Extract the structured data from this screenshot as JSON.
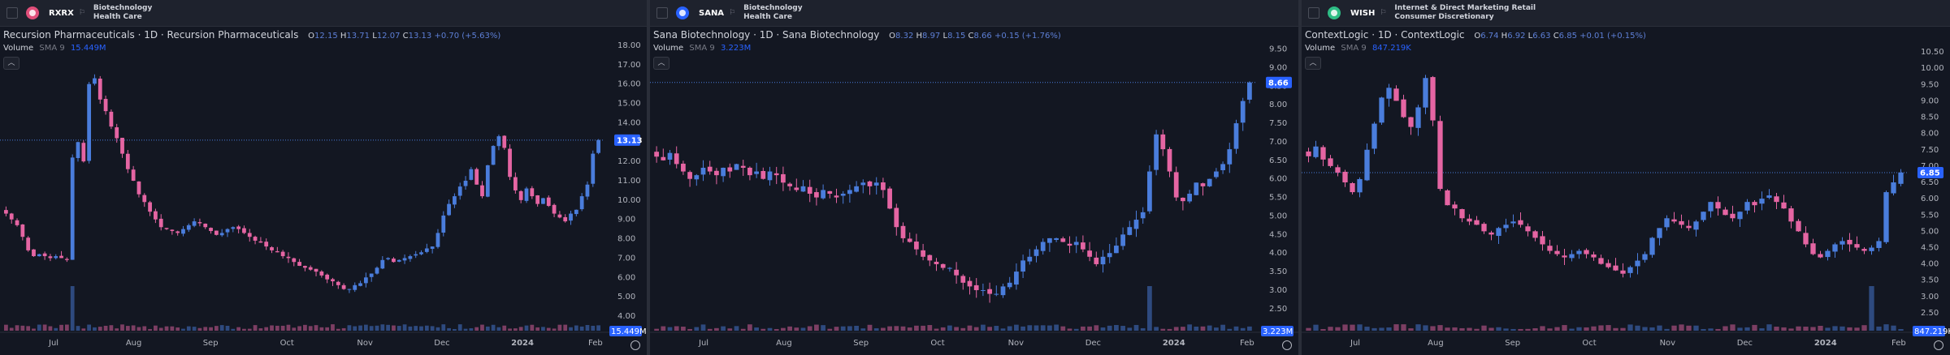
{
  "colors": {
    "up": "#4a7ddc",
    "down": "#e565a3",
    "bg": "#131722",
    "label": "#2962ff"
  },
  "panels": [
    {
      "ticker": "RXRX",
      "sector1": "Biotechnology",
      "sector2": "Health Care",
      "logo_color": "#e04e7a",
      "title": "Recursion Pharmaceuticals · 1D · Recursion Pharmaceuticals",
      "ohlc": {
        "o": "12.15",
        "h": "13.71",
        "l": "12.07",
        "c": "13.13",
        "chg": "+0.70 (+5.63%)"
      },
      "volume_label": "Volume",
      "sma_label": "SMA 9",
      "volume_value": "15.449M",
      "y_ticks": [
        "18.00",
        "17.00",
        "16.00",
        "15.00",
        "14.00",
        "13.00",
        "12.00",
        "11.00",
        "10.00",
        "9.00",
        "8.00",
        "7.00",
        "6.00",
        "5.00",
        "4.00"
      ],
      "x_ticks": [
        "Jul",
        "Aug",
        "Sep",
        "Oct",
        "Nov",
        "Dec",
        "2024",
        "Feb"
      ],
      "price_label": "13.13",
      "vol_label": "15.449M",
      "chart_data": {
        "type": "candlestick",
        "ymin": 4,
        "ymax": 18,
        "closes": [
          9.3,
          9.0,
          8.7,
          8.1,
          7.4,
          7.1,
          7.2,
          7.1,
          7.0,
          7.1,
          7.0,
          6.9,
          12.2,
          13.0,
          12.0,
          16.0,
          16.3,
          15.2,
          14.6,
          13.8,
          13.2,
          12.4,
          11.6,
          11.0,
          10.3,
          9.9,
          9.4,
          9.0,
          8.6,
          8.5,
          8.4,
          8.3,
          8.5,
          8.7,
          8.9,
          8.8,
          8.6,
          8.4,
          8.2,
          8.3,
          8.5,
          8.6,
          8.5,
          8.3,
          8.1,
          7.9,
          7.8,
          7.6,
          7.4,
          7.3,
          7.1,
          7.0,
          6.8,
          6.6,
          6.5,
          6.4,
          6.3,
          6.1,
          5.9,
          5.8,
          5.6,
          5.4,
          5.4,
          5.6,
          5.7,
          6.0,
          6.2,
          6.5,
          6.9,
          7.0,
          6.8,
          6.9,
          7.0,
          7.1,
          7.2,
          7.3,
          7.5,
          7.6,
          8.3,
          9.2,
          9.8,
          10.2,
          10.7,
          11.0,
          11.6,
          10.8,
          10.2,
          11.8,
          12.8,
          13.3,
          12.7,
          11.2,
          10.5,
          10.0,
          10.6,
          10.2,
          9.8,
          10.1,
          9.7,
          9.3,
          9.1,
          8.9,
          9.3,
          9.5,
          10.2,
          10.8,
          12.4,
          13.1
        ],
        "volume_spikes": [
          {
            "index": 12,
            "value": 15.4
          }
        ]
      }
    },
    {
      "ticker": "SANA",
      "sector1": "Biotechnology",
      "sector2": "Health Care",
      "logo_color": "#2962ff",
      "title": "Sana Biotechnology · 1D · Sana Biotechnology",
      "ohlc": {
        "o": "8.32",
        "h": "8.97",
        "l": "8.15",
        "c": "8.66",
        "chg": "+0.15 (+1.76%)"
      },
      "volume_label": "Volume",
      "sma_label": "SMA 9",
      "volume_value": "3.223M",
      "y_ticks": [
        "9.50",
        "9.00",
        "8.50",
        "8.00",
        "7.50",
        "7.00",
        "6.50",
        "6.00",
        "5.50",
        "5.00",
        "4.50",
        "4.00",
        "3.50",
        "3.00",
        "2.50"
      ],
      "x_ticks": [
        "Jul",
        "Aug",
        "Sep",
        "Oct",
        "Nov",
        "Dec",
        "2024",
        "Feb"
      ],
      "price_label": "8.66",
      "vol_label": "3.223M",
      "chart_data": {
        "type": "candlestick",
        "ymin": 2.3,
        "ymax": 9.6,
        "closes": [
          6.6,
          6.5,
          6.7,
          6.4,
          6.2,
          6.0,
          6.1,
          6.3,
          6.2,
          6.1,
          6.3,
          6.2,
          6.4,
          6.3,
          6.1,
          6.2,
          6.0,
          6.2,
          6.1,
          5.9,
          5.8,
          5.7,
          5.8,
          5.6,
          5.5,
          5.7,
          5.6,
          5.5,
          5.6,
          5.7,
          5.8,
          5.9,
          5.8,
          5.9,
          5.7,
          5.2,
          4.7,
          4.4,
          4.3,
          4.1,
          3.9,
          3.8,
          3.7,
          3.6,
          3.6,
          3.4,
          3.2,
          3.1,
          3.0,
          3.0,
          2.9,
          2.9,
          3.1,
          3.2,
          3.5,
          3.8,
          3.9,
          4.1,
          4.3,
          4.4,
          4.4,
          4.3,
          4.2,
          4.3,
          4.1,
          3.9,
          3.7,
          3.9,
          4.0,
          4.2,
          4.5,
          4.7,
          4.9,
          5.1,
          6.2,
          7.2,
          6.8,
          6.2,
          5.5,
          5.4,
          5.6,
          5.9,
          5.8,
          6.0,
          6.2,
          6.4,
          6.8,
          7.5,
          8.1,
          8.6
        ],
        "volume_spikes": [
          {
            "index": 74,
            "value": 3.2
          }
        ]
      }
    },
    {
      "ticker": "WISH",
      "sector1": "Internet & Direct Marketing Retail",
      "sector2": "Consumer Discretionary",
      "logo_color": "#2ebd85",
      "title": "ContextLogic · 1D · ContextLogic",
      "ohlc": {
        "o": "6.74",
        "h": "6.92",
        "l": "6.63",
        "c": "6.85",
        "chg": "+0.01 (+0.15%)"
      },
      "volume_label": "Volume",
      "sma_label": "SMA 9",
      "volume_value": "847.219K",
      "y_ticks": [
        "10.50",
        "10.00",
        "9.50",
        "9.00",
        "8.50",
        "8.00",
        "7.50",
        "7.00",
        "6.50",
        "6.00",
        "5.50",
        "5.00",
        "4.50",
        "4.00",
        "3.50",
        "3.00",
        "2.50"
      ],
      "x_ticks": [
        "Jul",
        "Aug",
        "Sep",
        "Oct",
        "Nov",
        "Dec",
        "2024",
        "Feb"
      ],
      "price_label": "6.85",
      "vol_label": "847.219K",
      "chart_data": {
        "type": "candlestick",
        "ymin": 2.4,
        "ymax": 10.7,
        "closes": [
          7.3,
          7.6,
          7.2,
          7.0,
          6.8,
          6.5,
          6.2,
          6.6,
          7.5,
          8.3,
          9.1,
          9.4,
          9.0,
          8.5,
          8.2,
          8.8,
          9.7,
          8.4,
          6.3,
          5.8,
          5.7,
          5.4,
          5.3,
          5.2,
          5.0,
          4.9,
          5.1,
          5.2,
          5.3,
          5.2,
          5.0,
          4.8,
          4.6,
          4.4,
          4.3,
          4.2,
          4.3,
          4.4,
          4.3,
          4.2,
          4.0,
          3.9,
          3.8,
          3.7,
          3.9,
          4.1,
          4.3,
          4.8,
          5.1,
          5.4,
          5.3,
          5.2,
          5.1,
          5.3,
          5.6,
          5.9,
          5.7,
          5.5,
          5.4,
          5.6,
          5.9,
          5.8,
          6.0,
          6.1,
          5.9,
          5.7,
          5.3,
          5.0,
          4.6,
          4.3,
          4.2,
          4.4,
          4.6,
          4.7,
          4.6,
          4.5,
          4.4,
          4.5,
          4.7,
          6.2,
          6.5,
          6.8
        ],
        "volume_spikes": [
          {
            "index": 77,
            "value": 0.85
          }
        ]
      }
    }
  ]
}
